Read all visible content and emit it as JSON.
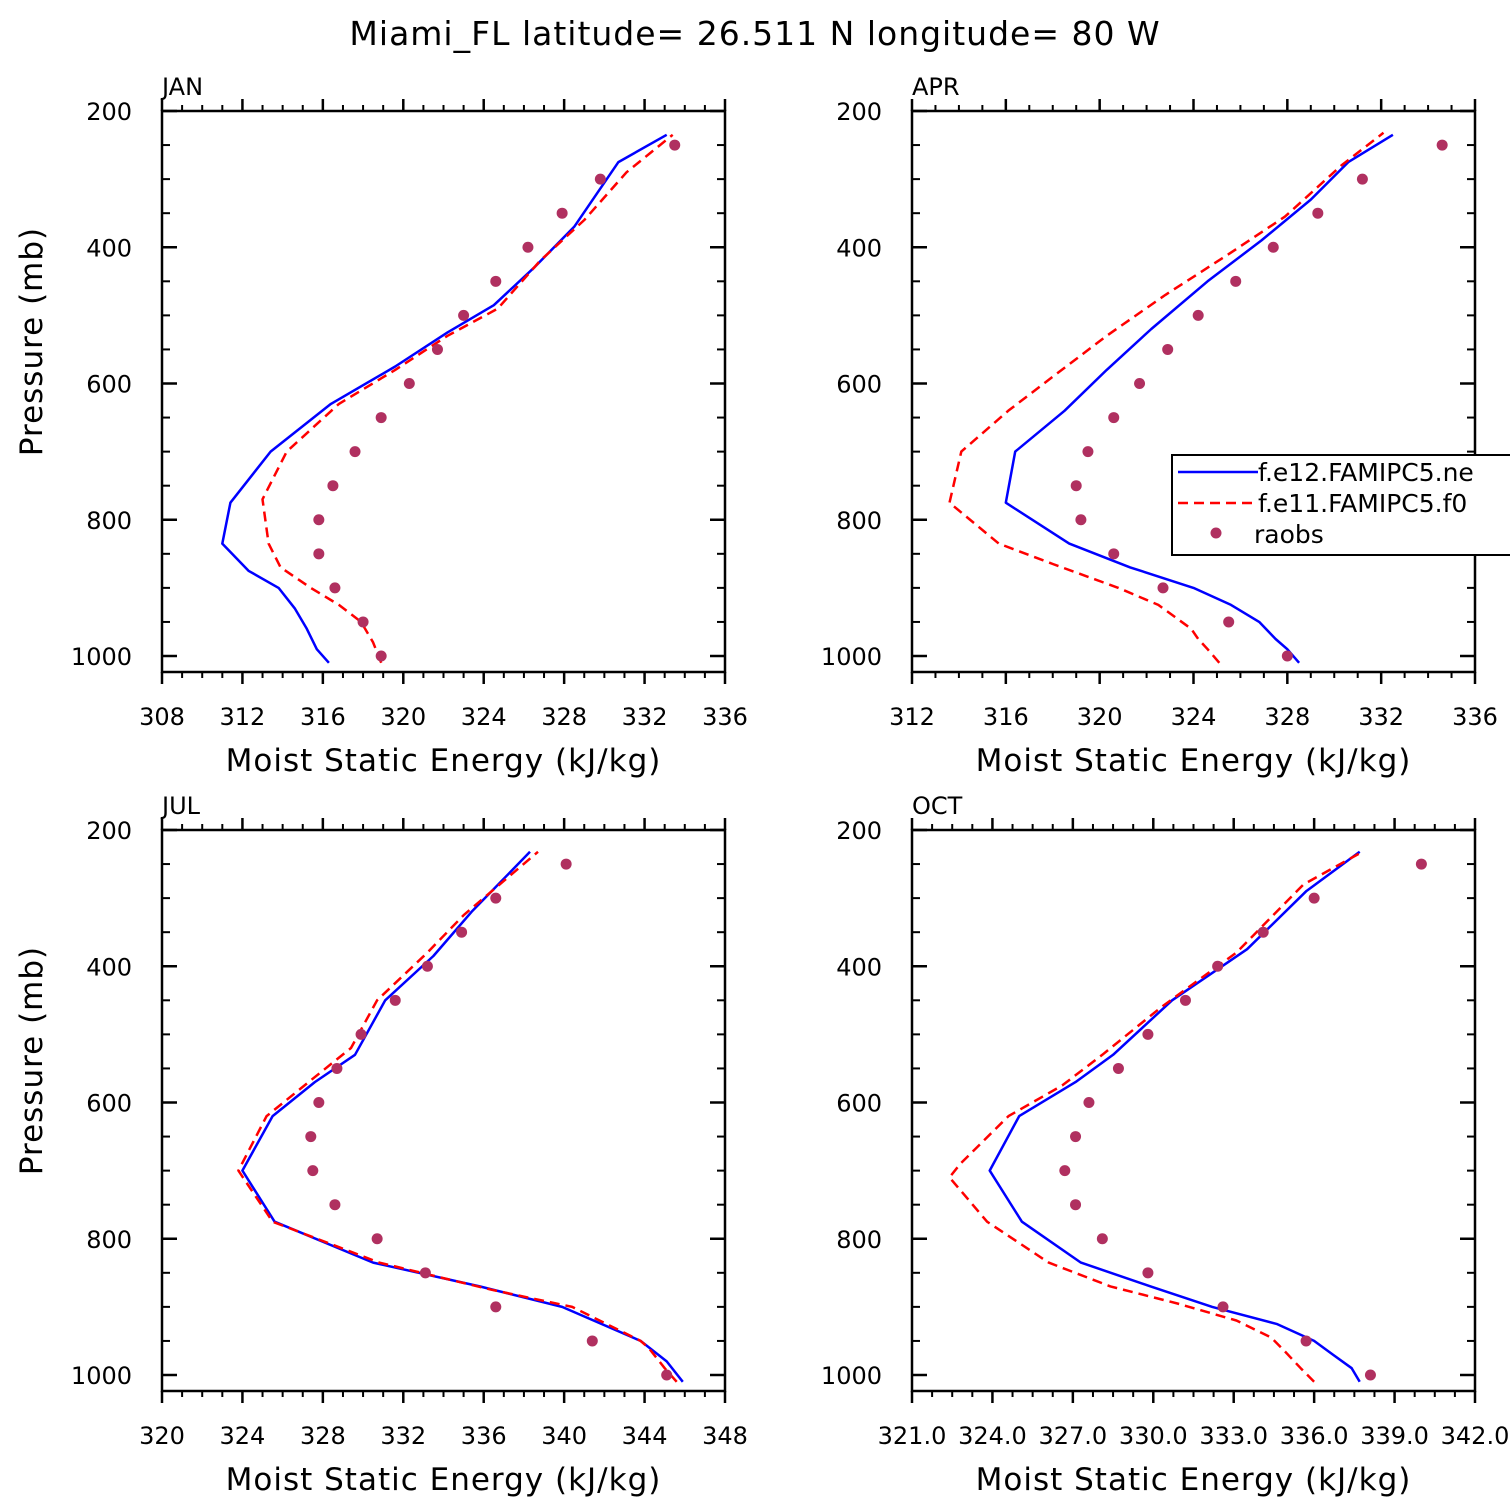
{
  "title": "Miami_FL  latitude= 26.511 N longitude= 80 W",
  "colors": {
    "blue": "#0000ff",
    "red": "#ff0000",
    "dots": "#b03060",
    "axis": "#000000"
  },
  "legend": {
    "entries": [
      {
        "label": "f.e12.FAMIPC5.ne",
        "style": "solid",
        "color": "#0000ff"
      },
      {
        "label": "f.e11.FAMIPC5.f0",
        "style": "dashed",
        "color": "#ff0000"
      },
      {
        "label": "raobs",
        "style": "dots",
        "color": "#b03060"
      }
    ]
  },
  "chart_data": [
    {
      "type": "line",
      "panel": "JAN",
      "xlabel": "Moist Static Energy (kJ/kg)",
      "ylabel": "Pressure (mb)",
      "xlim": [
        308,
        336
      ],
      "ylim": [
        200,
        1020
      ],
      "xticks": [
        "308",
        "312",
        "316",
        "320",
        "324",
        "328",
        "332",
        "336"
      ],
      "yticks": [
        "200",
        "400",
        "600",
        "800",
        "1000"
      ],
      "series": [
        {
          "name": "f.e12.FAMIPC5.ne",
          "style": "solid",
          "color": "#0000ff",
          "points": [
            [
              316.3,
              1010
            ],
            [
              315.7,
              990
            ],
            [
              315.2,
              960
            ],
            [
              314.6,
              930
            ],
            [
              313.8,
              900
            ],
            [
              312.3,
              875
            ],
            [
              311.0,
              835
            ],
            [
              311.4,
              775
            ],
            [
              313.4,
              700
            ],
            [
              316.4,
              630
            ],
            [
              319.6,
              575
            ],
            [
              322.2,
              525
            ],
            [
              324.5,
              485
            ],
            [
              326.5,
              430
            ],
            [
              328.5,
              370
            ],
            [
              330.7,
              275
            ],
            [
              333.1,
              235
            ]
          ]
        },
        {
          "name": "f.e11.FAMIPC5.f0",
          "style": "dashed",
          "color": "#ff0000",
          "points": [
            [
              318.9,
              1010
            ],
            [
              318.5,
              980
            ],
            [
              317.9,
              950
            ],
            [
              316.8,
              925
            ],
            [
              315.4,
              900
            ],
            [
              313.9,
              870
            ],
            [
              313.3,
              835
            ],
            [
              313.0,
              770
            ],
            [
              314.2,
              700
            ],
            [
              316.8,
              630
            ],
            [
              319.6,
              580
            ],
            [
              322.2,
              530
            ],
            [
              324.7,
              490
            ],
            [
              326.8,
              420
            ],
            [
              329.0,
              360
            ],
            [
              331.1,
              290
            ],
            [
              333.4,
              235
            ]
          ]
        },
        {
          "name": "raobs",
          "style": "dots",
          "color": "#b03060",
          "points": [
            [
              318.9,
              1000
            ],
            [
              318.0,
              950
            ],
            [
              316.6,
              900
            ],
            [
              315.8,
              850
            ],
            [
              315.8,
              800
            ],
            [
              316.5,
              750
            ],
            [
              317.6,
              700
            ],
            [
              318.9,
              650
            ],
            [
              320.3,
              600
            ],
            [
              321.7,
              550
            ],
            [
              323.0,
              500
            ],
            [
              324.6,
              450
            ],
            [
              326.2,
              400
            ],
            [
              327.9,
              350
            ],
            [
              329.8,
              300
            ],
            [
              333.5,
              250
            ]
          ]
        }
      ]
    },
    {
      "type": "line",
      "panel": "APR",
      "xlabel": "Moist Static Energy (kJ/kg)",
      "ylabel": "",
      "xlim": [
        312,
        336
      ],
      "ylim": [
        200,
        1020
      ],
      "xticks": [
        "312",
        "316",
        "320",
        "324",
        "328",
        "332",
        "336"
      ],
      "yticks": [
        "200",
        "400",
        "600",
        "800",
        "1000"
      ],
      "series": [
        {
          "name": "f.e12.FAMIPC5.ne",
          "style": "solid",
          "color": "#0000ff",
          "points": [
            [
              328.5,
              1010
            ],
            [
              328.0,
              990
            ],
            [
              327.5,
              975
            ],
            [
              326.8,
              950
            ],
            [
              325.6,
              925
            ],
            [
              324.0,
              900
            ],
            [
              321.3,
              870
            ],
            [
              318.7,
              835
            ],
            [
              316.0,
              775
            ],
            [
              316.4,
              700
            ],
            [
              318.5,
              640
            ],
            [
              320.3,
              580
            ],
            [
              322.2,
              520
            ],
            [
              324.6,
              450
            ],
            [
              326.9,
              390
            ],
            [
              329.0,
              330
            ],
            [
              330.6,
              275
            ],
            [
              332.5,
              235
            ]
          ]
        },
        {
          "name": "f.e11.FAMIPC5.f0",
          "style": "dashed",
          "color": "#ff0000",
          "points": [
            [
              325.1,
              1010
            ],
            [
              324.6,
              990
            ],
            [
              324.2,
              975
            ],
            [
              323.9,
              960
            ],
            [
              322.5,
              925
            ],
            [
              320.8,
              900
            ],
            [
              318.0,
              865
            ],
            [
              315.7,
              835
            ],
            [
              313.6,
              775
            ],
            [
              314.1,
              700
            ],
            [
              316.1,
              640
            ],
            [
              318.0,
              590
            ],
            [
              320.3,
              530
            ],
            [
              322.8,
              470
            ],
            [
              325.5,
              410
            ],
            [
              327.9,
              355
            ],
            [
              330.3,
              280
            ],
            [
              332.1,
              232
            ]
          ]
        },
        {
          "name": "raobs",
          "style": "dots",
          "color": "#b03060",
          "points": [
            [
              328.0,
              1000
            ],
            [
              325.5,
              950
            ],
            [
              322.7,
              900
            ],
            [
              320.6,
              850
            ],
            [
              319.2,
              800
            ],
            [
              319.0,
              750
            ],
            [
              319.5,
              700
            ],
            [
              320.6,
              650
            ],
            [
              321.7,
              600
            ],
            [
              322.9,
              550
            ],
            [
              324.2,
              500
            ],
            [
              325.8,
              450
            ],
            [
              327.4,
              400
            ],
            [
              329.3,
              350
            ],
            [
              331.2,
              300
            ],
            [
              334.6,
              250
            ]
          ]
        }
      ]
    },
    {
      "type": "line",
      "panel": "JUL",
      "xlabel": "Moist Static Energy (kJ/kg)",
      "ylabel": "Pressure (mb)",
      "xlim": [
        320,
        348
      ],
      "ylim": [
        200,
        1020
      ],
      "xticks": [
        "320",
        "324",
        "328",
        "332",
        "336",
        "340",
        "344",
        "348"
      ],
      "yticks": [
        "200",
        "400",
        "600",
        "800",
        "1000"
      ],
      "series": [
        {
          "name": "f.e12.FAMIPC5.ne",
          "style": "solid",
          "color": "#0000ff",
          "points": [
            [
              345.9,
              1010
            ],
            [
              345.1,
              980
            ],
            [
              343.8,
              950
            ],
            [
              339.9,
              900
            ],
            [
              335.8,
              870
            ],
            [
              330.5,
              835
            ],
            [
              325.6,
              775
            ],
            [
              324.0,
              700
            ],
            [
              325.5,
              620
            ],
            [
              327.6,
              570
            ],
            [
              329.6,
              530
            ],
            [
              331.1,
              450
            ],
            [
              333.5,
              385
            ],
            [
              335.4,
              320
            ],
            [
              338.3,
              232
            ]
          ]
        },
        {
          "name": "f.e11.FAMIPC5.f0",
          "style": "dashed",
          "color": "#ff0000",
          "points": [
            [
              345.6,
              1010
            ],
            [
              345.0,
              990
            ],
            [
              344.2,
              960
            ],
            [
              343.8,
              950
            ],
            [
              340.4,
              900
            ],
            [
              336.4,
              875
            ],
            [
              330.8,
              835
            ],
            [
              325.5,
              775
            ],
            [
              323.8,
              700
            ],
            [
              325.2,
              620
            ],
            [
              327.5,
              565
            ],
            [
              329.4,
              520
            ],
            [
              330.7,
              450
            ],
            [
              333.2,
              380
            ],
            [
              335.0,
              325
            ],
            [
              338.7,
              232
            ]
          ]
        },
        {
          "name": "raobs",
          "style": "dots",
          "color": "#b03060",
          "points": [
            [
              345.1,
              1000
            ],
            [
              341.4,
              950
            ],
            [
              336.6,
              900
            ],
            [
              333.1,
              850
            ],
            [
              330.7,
              800
            ],
            [
              328.6,
              750
            ],
            [
              327.5,
              700
            ],
            [
              327.4,
              650
            ],
            [
              327.8,
              600
            ],
            [
              328.7,
              550
            ],
            [
              329.9,
              500
            ],
            [
              331.6,
              450
            ],
            [
              333.2,
              400
            ],
            [
              334.9,
              350
            ],
            [
              336.6,
              300
            ],
            [
              340.1,
              250
            ]
          ]
        }
      ]
    },
    {
      "type": "line",
      "panel": "OCT",
      "xlabel": "Moist Static Energy (kJ/kg)",
      "ylabel": "",
      "xlim": [
        321.0,
        342.0
      ],
      "ylim": [
        200,
        1020
      ],
      "xticks": [
        "321.0",
        "324.0",
        "327.0",
        "330.0",
        "333.0",
        "336.0",
        "339.0",
        "342.0"
      ],
      "yticks": [
        "200",
        "400",
        "600",
        "800",
        "1000"
      ],
      "series": [
        {
          "name": "f.e12.FAMIPC5.ne",
          "style": "solid",
          "color": "#0000ff",
          "points": [
            [
              337.7,
              1010
            ],
            [
              337.4,
              990
            ],
            [
              336.7,
              970
            ],
            [
              336.0,
              950
            ],
            [
              334.6,
              925
            ],
            [
              332.2,
              900
            ],
            [
              329.9,
              870
            ],
            [
              327.3,
              835
            ],
            [
              325.1,
              775
            ],
            [
              323.9,
              700
            ],
            [
              325.0,
              620
            ],
            [
              327.1,
              570
            ],
            [
              328.5,
              530
            ],
            [
              330.7,
              450
            ],
            [
              333.5,
              375
            ],
            [
              335.7,
              290
            ],
            [
              337.7,
              232
            ]
          ]
        },
        {
          "name": "f.e11.FAMIPC5.f0",
          "style": "dashed",
          "color": "#ff0000",
          "points": [
            [
              336.0,
              1010
            ],
            [
              335.5,
              990
            ],
            [
              334.9,
              965
            ],
            [
              334.4,
              945
            ],
            [
              333.1,
              920
            ],
            [
              330.9,
              895
            ],
            [
              328.4,
              870
            ],
            [
              326.1,
              835
            ],
            [
              323.8,
              775
            ],
            [
              322.4,
              710
            ],
            [
              322.8,
              690
            ],
            [
              324.6,
              620
            ],
            [
              326.6,
              575
            ],
            [
              328.1,
              530
            ],
            [
              330.3,
              460
            ],
            [
              333.1,
              380
            ],
            [
              335.6,
              280
            ],
            [
              337.8,
              232
            ]
          ]
        },
        {
          "name": "raobs",
          "style": "dots",
          "color": "#b03060",
          "points": [
            [
              338.1,
              1000
            ],
            [
              335.7,
              950
            ],
            [
              332.6,
              900
            ],
            [
              329.8,
              850
            ],
            [
              328.1,
              800
            ],
            [
              327.1,
              750
            ],
            [
              326.7,
              700
            ],
            [
              327.1,
              650
            ],
            [
              327.6,
              600
            ],
            [
              328.7,
              550
            ],
            [
              329.8,
              500
            ],
            [
              331.2,
              450
            ],
            [
              332.4,
              400
            ],
            [
              334.1,
              350
            ],
            [
              336.0,
              300
            ],
            [
              340.0,
              250
            ]
          ]
        }
      ]
    }
  ]
}
